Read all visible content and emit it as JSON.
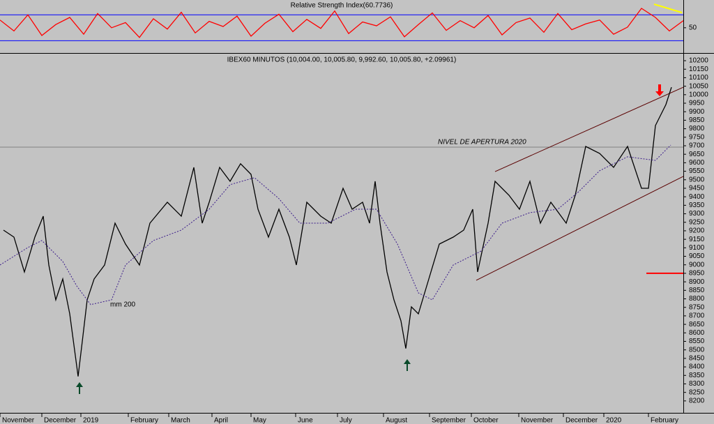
{
  "chart_data": [
    {
      "type": "line",
      "title": "Relative Strength Index(60.7736)",
      "x": [
        0,
        5,
        10,
        15,
        20,
        25,
        30,
        35,
        40,
        45,
        50,
        55,
        60,
        65,
        70,
        75,
        80,
        85,
        90,
        95,
        100,
        105,
        110,
        115,
        120,
        125,
        130,
        135,
        140,
        145,
        150,
        155,
        160,
        165,
        170,
        175,
        180,
        185,
        190,
        195,
        200,
        205,
        210,
        215,
        220,
        225,
        230,
        235,
        240,
        245
      ],
      "series": [
        {
          "color": "#ff0000",
          "values": [
            62,
            45,
            70,
            38,
            55,
            66,
            40,
            72,
            50,
            58,
            35,
            64,
            48,
            74,
            42,
            60,
            52,
            68,
            37,
            57,
            71,
            44,
            63,
            49,
            76,
            41,
            59,
            53,
            67,
            36,
            55,
            73,
            46,
            61,
            50,
            69,
            39,
            58,
            65,
            43,
            72,
            47,
            56,
            62,
            40,
            51,
            80,
            66,
            45,
            61
          ]
        }
      ],
      "hlines": [
        {
          "value": 70,
          "color": "#0000ff"
        },
        {
          "value": 30,
          "color": "#0000ff"
        }
      ],
      "ylim": [
        12,
        93
      ],
      "yticks": [
        50
      ]
    },
    {
      "type": "line",
      "title": "IBEX60 MINUTOS (10,004.00, 10,005.80, 9,992.60, 10,005.80, +2.09961)",
      "series": [
        {
          "color": "#000000",
          "x": [
            1.25,
            5,
            8.75,
            12.5,
            15.5,
            17.5,
            20,
            22.5,
            25,
            27,
            28,
            29.5,
            31.25,
            33.75,
            37.5,
            41.25,
            45,
            50,
            53.75,
            60,
            65,
            69.5,
            72.5,
            75,
            78.75,
            82.5,
            86.25,
            90,
            92.5,
            96.25,
            100,
            103.75,
            106.25,
            110,
            115,
            118.75,
            123,
            126.25,
            130,
            132.5,
            134.5,
            136.25,
            138.75,
            141.25,
            143.75,
            145.5,
            147.5,
            150,
            153.75,
            157.5,
            162.5,
            166.25,
            169.5,
            171.25,
            175,
            177.5,
            182.5,
            186.25,
            190,
            193.75,
            197.5,
            203,
            206.25,
            210,
            215,
            220,
            225,
            230,
            232.5,
            235,
            238.75,
            240.75
          ],
          "values": [
            9204,
            9163,
            8958,
            9163,
            9286,
            8999,
            8794,
            8917,
            8712,
            8467,
            8344,
            8549,
            8794,
            8917,
            8999,
            9245,
            9122,
            8999,
            9245,
            9368,
            9286,
            9573,
            9245,
            9368,
            9573,
            9491,
            9594,
            9532,
            9327,
            9163,
            9327,
            9163,
            8999,
            9368,
            9286,
            9245,
            9450,
            9327,
            9368,
            9245,
            9491,
            9245,
            8958,
            8794,
            8671,
            8508,
            8753,
            8712,
            8917,
            9122,
            9163,
            9204,
            9327,
            8958,
            9245,
            9491,
            9409,
            9327,
            9491,
            9245,
            9368,
            9245,
            9409,
            9696,
            9655,
            9573,
            9696,
            9450,
            9450,
            9819,
            9942,
            10044
          ]
        },
        {
          "name": "mm 200",
          "color": "#3a1a8a",
          "dashed": true,
          "x": [
            0,
            10,
            15,
            22.5,
            27.5,
            32.5,
            40,
            45,
            55,
            65,
            75,
            82.5,
            91.25,
            100,
            107.5,
            117.5,
            127.5,
            135,
            142.5,
            150,
            155,
            162.5,
            172.5,
            180,
            190,
            200,
            207.5,
            215,
            225,
            235,
            240.5
          ],
          "values": [
            8999,
            9102,
            9143,
            9020,
            8876,
            8766,
            8794,
            8999,
            9143,
            9204,
            9327,
            9471,
            9512,
            9389,
            9245,
            9245,
            9327,
            9327,
            9122,
            8835,
            8794,
            8999,
            9081,
            9245,
            9307,
            9327,
            9430,
            9553,
            9635,
            9614,
            9704
          ]
        }
      ],
      "trendlines": [
        {
          "x": [
            177.5,
            245
          ],
          "values": [
            9548,
            10044
          ],
          "color": "#5a0000"
        },
        {
          "x": [
            170.75,
            245
          ],
          "values": [
            8909,
            9520
          ],
          "color": "#5a0000"
        }
      ],
      "reference_lines": [
        {
          "label": "NIVEL DE APERTURA 2020",
          "value": 9692,
          "color": "#808080",
          "x": [
            0,
            245
          ]
        },
        {
          "value": 8950,
          "color": "#ff0000",
          "x": [
            231.75,
            245
          ]
        }
      ],
      "xlim": [
        0,
        245
      ],
      "xticks": [
        {
          "value": 0,
          "label": "November"
        },
        {
          "value": 15,
          "label": "December"
        },
        {
          "value": 29,
          "label": "2019"
        },
        {
          "value": 46,
          "label": "February"
        },
        {
          "value": 60.5,
          "label": "March"
        },
        {
          "value": 76,
          "label": "April"
        },
        {
          "value": 90,
          "label": "May"
        },
        {
          "value": 106,
          "label": "June"
        },
        {
          "value": 121,
          "label": "July"
        },
        {
          "value": 137.5,
          "label": "August"
        },
        {
          "value": 154,
          "label": "September"
        },
        {
          "value": 169,
          "label": "October"
        },
        {
          "value": 186,
          "label": "November"
        },
        {
          "value": 202,
          "label": "December"
        },
        {
          "value": 216.5,
          "label": "2020"
        },
        {
          "value": 232.5,
          "label": "February"
        }
      ],
      "ylim": [
        8138,
        10237
      ],
      "yticks": [
        8200,
        8250,
        8300,
        8350,
        8400,
        8450,
        8500,
        8550,
        8600,
        8650,
        8700,
        8750,
        8800,
        8850,
        8900,
        8950,
        9000,
        9050,
        9100,
        9150,
        9200,
        9250,
        9300,
        9350,
        9400,
        9450,
        9500,
        9550,
        9600,
        9650,
        9700,
        9750,
        9800,
        9850,
        9900,
        9950,
        10000,
        10050,
        10100,
        10150,
        10200
      ]
    }
  ]
}
